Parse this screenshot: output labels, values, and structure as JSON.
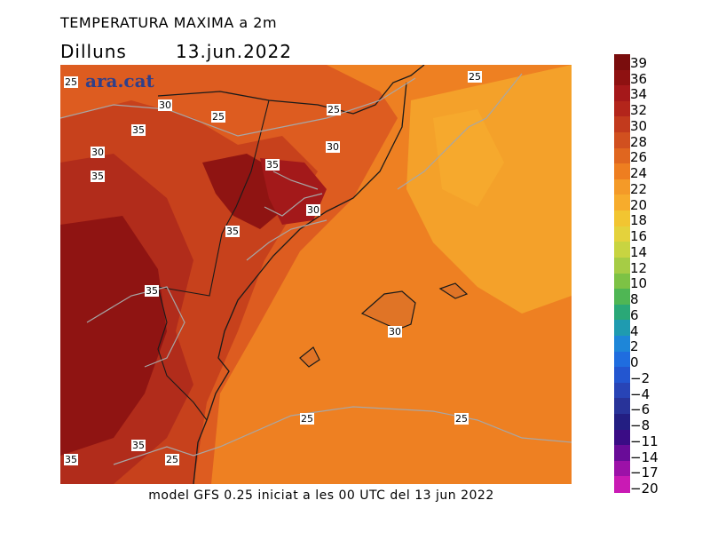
{
  "header": {
    "title": "TEMPERATURA MAXIMA a 2m",
    "day": "Dilluns",
    "date": "13.jun.2022"
  },
  "brand": {
    "text": "ara.cat"
  },
  "footer": {
    "text": "model GFS 0.25 iniciat a les 00 UTC del 13 jun 2022"
  },
  "contour_labels": [
    "25",
    "30",
    "25",
    "25",
    "25",
    "35",
    "30",
    "30",
    "35",
    "35",
    "30",
    "35",
    "35",
    "30",
    "25",
    "25",
    "35",
    "35",
    "25"
  ],
  "legend": {
    "labels": [
      "39",
      "36",
      "34",
      "32",
      "30",
      "28",
      "26",
      "24",
      "22",
      "20",
      "18",
      "16",
      "14",
      "12",
      "10",
      "8",
      "6",
      "4",
      "2",
      "0",
      "−2",
      "−4",
      "−6",
      "−8",
      "−11",
      "−14",
      "−17",
      "−20"
    ],
    "colors": [
      "#7a0d0d",
      "#8e1111",
      "#a5181a",
      "#b3251b",
      "#c23a1d",
      "#d1501f",
      "#e0661f",
      "#ee7e20",
      "#f49a28",
      "#f7ac2c",
      "#f2c531",
      "#e4d23c",
      "#c8d441",
      "#a6cc45",
      "#7dc245",
      "#4fb654",
      "#2aa877",
      "#1f9bb0",
      "#1e86d8",
      "#1f6ddf",
      "#2356d0",
      "#2844b6",
      "#283399",
      "#231e82",
      "#3a0c85",
      "#690c98",
      "#9c11a8",
      "#c91ab4"
    ]
  }
}
